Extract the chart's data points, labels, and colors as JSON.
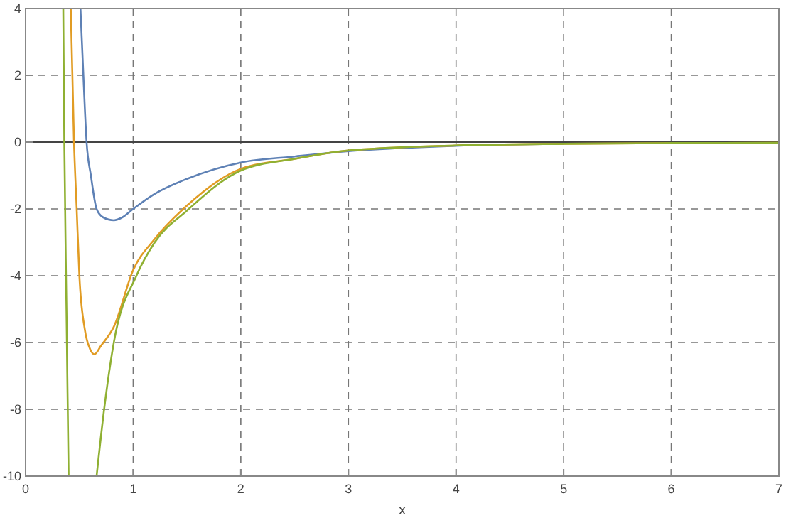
{
  "chart_data": {
    "type": "line",
    "xlabel": "x",
    "xlim": [
      0,
      7
    ],
    "ylim": [
      -10,
      4
    ],
    "xticks": [
      0,
      1,
      2,
      3,
      4,
      5,
      6,
      7
    ],
    "yticks": [
      -10,
      -8,
      -6,
      -4,
      -2,
      0,
      2,
      4
    ],
    "grid": true,
    "line_style": "solid",
    "marker": "none",
    "ref_lines": [
      {
        "axis": "y",
        "value": 0,
        "color": "#444444"
      }
    ],
    "series": [
      {
        "color": "#5e81b5",
        "x": [
          0.51,
          0.537,
          0.567,
          0.607,
          0.66,
          0.72,
          0.82,
          0.9,
          1.0,
          1.2,
          1.5,
          2.0,
          2.5,
          3.0,
          4.0,
          5.0
        ],
        "values": [
          4,
          2,
          0,
          -1,
          -2,
          -2.25,
          -2.34,
          -2.25,
          -2.0,
          -1.55,
          -1.1,
          -0.61,
          -0.43,
          -0.27,
          -0.11,
          -0.05
        ]
      },
      {
        "color": "#e19c24",
        "x": [
          0.42,
          0.45,
          0.475,
          0.5,
          0.55,
          0.6,
          0.64,
          0.7,
          0.82,
          1.0,
          1.2,
          1.5,
          2.0,
          2.5,
          3.0,
          4.0,
          5.0,
          6.0,
          7.0
        ],
        "values": [
          4,
          0,
          -2,
          -4,
          -5.6,
          -6.2,
          -6.35,
          -6.1,
          -5.53,
          -3.83,
          -2.9,
          -1.9,
          -0.8,
          -0.5,
          -0.25,
          -0.1,
          -0.05,
          -0.03,
          -0.02
        ]
      },
      {
        "color": "#8fb032",
        "x": [
          0.35,
          0.36,
          0.38,
          0.4
        ],
        "values": [
          4,
          0,
          -5,
          -10
        ]
      },
      {
        "color": "#8fb032",
        "x": [
          0.66,
          0.73,
          0.82,
          1.03,
          1.2,
          1.5,
          2.0,
          2.5,
          3.0,
          4.0,
          5.0,
          6.0,
          7.0
        ],
        "values": [
          -10,
          -8,
          -6,
          -4,
          -3.0,
          -2.05,
          -0.85,
          -0.5,
          -0.25,
          -0.1,
          -0.05,
          -0.03,
          -0.02
        ]
      }
    ]
  }
}
